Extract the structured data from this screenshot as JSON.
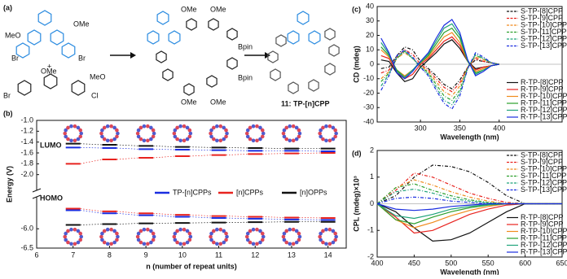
{
  "scheme": {
    "label": "(a)",
    "texts": [
      "MeO",
      "Br",
      "OMe",
      "Br",
      "+",
      "OMe",
      "MeO",
      "Br",
      "Cl",
      "OMe",
      "OMe",
      "Bpin",
      "Bpin",
      "OMe",
      "OMe",
      "11: TP-[n]CPP"
    ]
  },
  "chart_data": [
    {
      "type": "energy-level",
      "panel_label": "(b)",
      "x_label": "n (number of repeat units)",
      "y_label": "Energy (V)",
      "xlim": [
        6,
        14.5
      ],
      "xticks": [
        6,
        7,
        8,
        9,
        10,
        11,
        12,
        13,
        14
      ],
      "x": [
        7,
        8,
        9,
        10,
        11,
        12,
        13,
        14
      ],
      "ylim": [
        -2.2,
        -1.0
      ],
      "yticks": [
        {
          "value": -1,
          "label": "-1.0"
        },
        -1.2,
        -1.4,
        -1.6,
        -1.8,
        {
          "value": -2,
          "label": "-2.0"
        }
      ],
      "ylim_lower": [
        -6.5,
        -5.3
      ],
      "yticks_lower": [
        {
          "value": -6,
          "label": "-6.0"
        },
        -6.5
      ],
      "annotations": [
        "LUMO",
        "HOMO"
      ],
      "series": [
        {
          "name": "TP-[n]CPPs",
          "color": "#1a2de0",
          "lumo": [
            -1.5,
            -1.51,
            -1.53,
            -1.54,
            -1.55,
            -1.56,
            -1.56,
            -1.57
          ],
          "homo": [
            -5.52,
            -5.6,
            -5.65,
            -5.69,
            -5.72,
            -5.74,
            -5.76,
            -5.77
          ]
        },
        {
          "name": "[n]CPPs",
          "color": "#e8231f",
          "lumo": [
            -1.8,
            -1.72,
            -1.69,
            -1.66,
            -1.64,
            -1.62,
            -1.61,
            -1.6
          ],
          "homo": [
            -5.48,
            -5.55,
            -5.6,
            -5.64,
            -5.67,
            -5.69,
            -5.71,
            -5.72
          ]
        },
        {
          "name": "[n]OPPs",
          "color": "#111111",
          "lumo": [
            -1.43,
            -1.45,
            -1.47,
            -1.49,
            -1.5,
            -1.51,
            -1.52,
            -1.52
          ],
          "homo": [
            -5.9,
            -5.88,
            -5.86,
            -5.85,
            -5.84,
            -5.83,
            -5.82,
            -5.82
          ]
        }
      ]
    },
    {
      "type": "line",
      "panel_label": "(c)",
      "x_label": "Wavelength (nm)",
      "y_label": "CD (mdeg)",
      "xlim": [
        245,
        480
      ],
      "xticks": [
        300,
        350,
        400
      ],
      "ylim": [
        -40,
        40
      ],
      "yticks": [
        -40,
        -30,
        -20,
        -10,
        0,
        10,
        20,
        30,
        40
      ],
      "x": [
        250,
        260,
        270,
        280,
        290,
        300,
        310,
        320,
        330,
        340,
        350,
        360,
        370,
        380,
        390,
        400
      ],
      "series": [
        {
          "name": "S-TP-[8]CPP",
          "color": "#111111",
          "dash": true,
          "values": [
            -3,
            -2,
            6,
            12,
            10,
            2,
            -3,
            -8,
            -14,
            -17,
            -11,
            -2,
            3,
            2,
            1,
            0
          ]
        },
        {
          "name": "S-TP-[9]CPP",
          "color": "#e8231f",
          "dash": true,
          "values": [
            -6,
            -4,
            5,
            10,
            7,
            0,
            -4,
            -10,
            -16,
            -19,
            -13,
            -2,
            4,
            2,
            1,
            0
          ]
        },
        {
          "name": "S-TP-[10]CPP",
          "color": "#f08a1c",
          "dash": true,
          "values": [
            -10,
            -5,
            4,
            8,
            4,
            -1,
            -5,
            -12,
            -19,
            -22,
            -15,
            -2,
            5,
            3,
            1,
            0
          ]
        },
        {
          "name": "S-TP-[11]CPP",
          "color": "#2ca02c",
          "dash": true,
          "values": [
            -12,
            -6,
            4,
            9,
            4,
            -1,
            -6,
            -14,
            -22,
            -25,
            -18,
            -2,
            6,
            4,
            1,
            0
          ]
        },
        {
          "name": "S-TP-[12]CPP",
          "color": "#1fa37a",
          "dash": true,
          "values": [
            -15,
            -7,
            5,
            9,
            4,
            -2,
            -7,
            -16,
            -25,
            -28,
            -20,
            -3,
            7,
            4,
            1,
            0
          ]
        },
        {
          "name": "S-TP-[13]CPP",
          "color": "#1a2de0",
          "dash": true,
          "values": [
            -18,
            -8,
            6,
            10,
            5,
            -2,
            -8,
            -18,
            -27,
            -31,
            -22,
            -3,
            8,
            5,
            1,
            0
          ]
        },
        {
          "name": "R-TP-[8]CPP",
          "color": "#111111",
          "dash": false,
          "values": [
            3,
            2,
            -6,
            -12,
            -10,
            -2,
            3,
            8,
            14,
            17,
            11,
            2,
            -3,
            -2,
            -1,
            0
          ]
        },
        {
          "name": "R-TP-[9]CPP",
          "color": "#e8231f",
          "dash": false,
          "values": [
            6,
            4,
            -5,
            -10,
            -7,
            0,
            4,
            10,
            16,
            19,
            13,
            2,
            -4,
            -2,
            -1,
            0
          ]
        },
        {
          "name": "R-TP-[10]CPP",
          "color": "#f08a1c",
          "dash": false,
          "values": [
            10,
            5,
            -4,
            -8,
            -4,
            1,
            5,
            12,
            19,
            22,
            15,
            2,
            -5,
            -3,
            -1,
            0
          ]
        },
        {
          "name": "R-TP-[11]CPP",
          "color": "#2ca02c",
          "dash": false,
          "values": [
            12,
            6,
            -4,
            -9,
            -4,
            1,
            6,
            14,
            22,
            25,
            18,
            2,
            -6,
            -4,
            -1,
            0
          ]
        },
        {
          "name": "R-TP-[12]CPP",
          "color": "#1fa37a",
          "dash": false,
          "values": [
            15,
            7,
            -5,
            -9,
            -4,
            2,
            7,
            16,
            25,
            28,
            20,
            3,
            -7,
            -4,
            -1,
            0
          ]
        },
        {
          "name": "R-TP-[13]CPP",
          "color": "#1a2de0",
          "dash": false,
          "values": [
            18,
            8,
            -6,
            -10,
            -5,
            2,
            8,
            18,
            27,
            31,
            22,
            3,
            -8,
            -5,
            -1,
            0
          ]
        }
      ]
    },
    {
      "type": "line",
      "panel_label": "(d)",
      "x_label": "Wavelength (nm)",
      "y_label": "CPL (mdeg)×10³",
      "xlim": [
        400,
        650
      ],
      "xticks": [
        400,
        450,
        500,
        550,
        600,
        650
      ],
      "ylim": [
        -2,
        2
      ],
      "yticks": [
        -2,
        -1,
        0,
        1,
        2
      ],
      "x": [
        400,
        425,
        450,
        475,
        500,
        525,
        550,
        575,
        600,
        625,
        650
      ],
      "series": [
        {
          "name": "S-TP-[8]CPP",
          "color": "#111111",
          "dash": true,
          "values": [
            0,
            0.3,
            1.0,
            1.45,
            1.4,
            1.2,
            0.8,
            0.3,
            0,
            0,
            0
          ]
        },
        {
          "name": "S-TP-[9]CPP",
          "color": "#e8231f",
          "dash": true,
          "values": [
            0,
            0.5,
            1.15,
            1.0,
            0.7,
            0.4,
            0.2,
            0.05,
            0,
            0,
            0
          ]
        },
        {
          "name": "S-TP-[10]CPP",
          "color": "#f08a1c",
          "dash": true,
          "values": [
            0,
            0.6,
            0.9,
            0.7,
            0.45,
            0.25,
            0.1,
            0,
            0,
            0,
            0
          ]
        },
        {
          "name": "S-TP-[11]CPP",
          "color": "#2ca02c",
          "dash": true,
          "values": [
            0,
            0.6,
            0.75,
            0.5,
            0.3,
            0.15,
            0.05,
            0,
            0,
            0,
            0
          ]
        },
        {
          "name": "S-TP-[12]CPP",
          "color": "#1fa37a",
          "dash": true,
          "values": [
            0,
            0.45,
            0.55,
            0.4,
            0.2,
            0.1,
            0.03,
            0,
            0,
            0,
            0
          ]
        },
        {
          "name": "S-TP-[13]CPP",
          "color": "#1a2de0",
          "dash": true,
          "values": [
            0,
            0.2,
            0.25,
            0.2,
            0.1,
            0.05,
            0,
            0,
            0,
            0,
            0
          ]
        },
        {
          "name": "R-TP-[8]CPP",
          "color": "#111111",
          "dash": false,
          "values": [
            0,
            -0.3,
            -0.9,
            -1.4,
            -1.35,
            -1.1,
            -0.7,
            -0.3,
            0,
            0,
            0
          ]
        },
        {
          "name": "R-TP-[9]CPP",
          "color": "#e8231f",
          "dash": false,
          "values": [
            0,
            -0.5,
            -1.1,
            -1.0,
            -0.7,
            -0.4,
            -0.2,
            -0.05,
            0,
            0,
            0
          ]
        },
        {
          "name": "R-TP-[10]CPP",
          "color": "#f08a1c",
          "dash": false,
          "values": [
            0,
            -0.6,
            -0.9,
            -0.7,
            -0.45,
            -0.25,
            -0.1,
            0,
            0,
            0,
            0
          ]
        },
        {
          "name": "R-TP-[11]CPP",
          "color": "#2ca02c",
          "dash": false,
          "values": [
            0,
            -0.6,
            -0.75,
            -0.5,
            -0.3,
            -0.15,
            -0.05,
            0,
            0,
            0,
            0
          ]
        },
        {
          "name": "R-TP-[12]CPP",
          "color": "#1fa37a",
          "dash": false,
          "values": [
            0,
            -0.45,
            -0.55,
            -0.4,
            -0.2,
            -0.1,
            -0.03,
            0,
            0,
            0,
            0
          ]
        },
        {
          "name": "R-TP-[13]CPP",
          "color": "#1a2de0",
          "dash": false,
          "values": [
            0,
            -0.2,
            -0.25,
            -0.2,
            -0.1,
            -0.05,
            0,
            0,
            0,
            0,
            0
          ]
        }
      ]
    }
  ]
}
